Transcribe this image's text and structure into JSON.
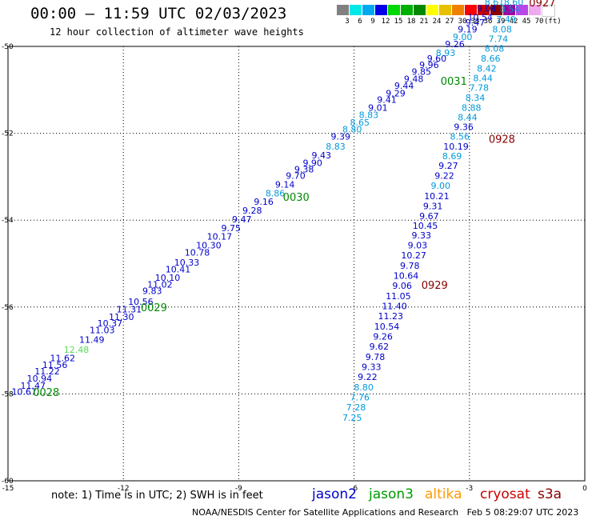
{
  "header": {
    "title": "00:00 – 11:59 UTC 02/03/2023",
    "subtitle": "12 hour collection of altimeter wave heights"
  },
  "legend": {
    "colors": [
      "#808080",
      "#00e8e8",
      "#00a8f0",
      "#0000e8",
      "#00d800",
      "#00b000",
      "#008800",
      "#ffff00",
      "#e8c000",
      "#f08000",
      "#ff0000",
      "#c80000",
      "#880000",
      "#a000a0",
      "#b848e8",
      "#f0a8f0",
      "#ffffff"
    ],
    "labels": [
      "3",
      "6",
      "9",
      "12",
      "15",
      "18",
      "21",
      "24",
      "27",
      "30",
      "33",
      "36",
      "39",
      "42",
      "45",
      "70",
      "(ft)"
    ]
  },
  "footer": {
    "note": "note:  1) Time is in UTC;  2) SWH is in feet",
    "satellites": [
      {
        "name": "jason2",
        "color": "#0000cc"
      },
      {
        "name": "jason3",
        "color": "#009900"
      },
      {
        "name": "altika",
        "color": "#ff9900"
      },
      {
        "name": "cryosat",
        "color": "#cc0000"
      },
      {
        "name": "s3a",
        "color": "#880000"
      }
    ],
    "credit": "NOAA/NESDIS Center for Satellite Applications and Research",
    "timestamp": "Feb  5 08:29:07 UTC 2023"
  },
  "chart_data": {
    "type": "scatter",
    "xlim": [
      -15,
      0
    ],
    "ylim": [
      -60,
      -50
    ],
    "xticks": [
      -15,
      -12,
      -9,
      -6,
      -3,
      0
    ],
    "yticks": [
      -50,
      -52,
      -54,
      -56,
      -58,
      -60
    ],
    "grid": true,
    "colors": {
      "blue": "#0000cc",
      "cyan": "#0099dd",
      "green": "#55dd55",
      "label_green": "#008800",
      "label_red": "#880000"
    },
    "series": [
      {
        "points": [
          {
            "x": -14.58,
            "y": -58.02,
            "v": "10.67",
            "c": "blue"
          },
          {
            "x": -14.35,
            "y": -57.88,
            "v": "11.47",
            "c": "blue"
          },
          {
            "x": -14.18,
            "y": -57.72,
            "v": "10.94",
            "c": "blue"
          },
          {
            "x": -13.98,
            "y": -57.55,
            "v": "11.22",
            "c": "blue"
          },
          {
            "x": -13.78,
            "y": -57.4,
            "v": "11.56",
            "c": "blue"
          },
          {
            "x": -13.58,
            "y": -57.25,
            "v": "11.62",
            "c": "blue"
          },
          {
            "x": -13.22,
            "y": -57.05,
            "v": "12.48",
            "c": "green"
          },
          {
            "x": -12.82,
            "y": -56.82,
            "v": "11.49",
            "c": "blue"
          },
          {
            "x": -12.55,
            "y": -56.6,
            "v": "11.03",
            "c": "blue"
          },
          {
            "x": -12.35,
            "y": -56.45,
            "v": "10.37",
            "c": "blue"
          },
          {
            "x": -12.05,
            "y": -56.3,
            "v": "11.30",
            "c": "blue"
          },
          {
            "x": -11.85,
            "y": -56.12,
            "v": "11.31",
            "c": "blue"
          },
          {
            "x": -11.55,
            "y": -55.95,
            "v": "10.56",
            "c": "blue"
          },
          {
            "x": -11.25,
            "y": -55.7,
            "v": "9.83",
            "c": "blue"
          },
          {
            "x": -11.05,
            "y": -55.55,
            "v": "11.02",
            "c": "blue"
          },
          {
            "x": -10.85,
            "y": -55.4,
            "v": "10.10",
            "c": "blue"
          },
          {
            "x": -10.58,
            "y": -55.2,
            "v": "10.41",
            "c": "blue"
          },
          {
            "x": -10.35,
            "y": -55.05,
            "v": "10.33",
            "c": "blue"
          },
          {
            "x": -10.08,
            "y": -54.82,
            "v": "10.78",
            "c": "blue"
          },
          {
            "x": -9.78,
            "y": -54.65,
            "v": "10.30",
            "c": "blue"
          },
          {
            "x": -9.5,
            "y": -54.45,
            "v": "10.17",
            "c": "blue"
          },
          {
            "x": -9.2,
            "y": -54.25,
            "v": "9.75",
            "c": "blue"
          },
          {
            "x": -8.92,
            "y": -54.05,
            "v": "9.47",
            "c": "blue"
          },
          {
            "x": -8.65,
            "y": -53.85,
            "v": "9.28",
            "c": "blue"
          },
          {
            "x": -8.35,
            "y": -53.65,
            "v": "9.16",
            "c": "blue"
          },
          {
            "x": -8.05,
            "y": -53.45,
            "v": "8.86",
            "c": "cyan"
          },
          {
            "x": -7.8,
            "y": -53.25,
            "v": "9.14",
            "c": "blue"
          },
          {
            "x": -7.52,
            "y": -53.05,
            "v": "9.70",
            "c": "blue"
          },
          {
            "x": -7.3,
            "y": -52.9,
            "v": "9.38",
            "c": "blue"
          },
          {
            "x": -7.08,
            "y": -52.75,
            "v": "9.90",
            "c": "blue"
          },
          {
            "x": -6.85,
            "y": -52.58,
            "v": "9.43",
            "c": "blue"
          },
          {
            "x": -6.48,
            "y": -52.38,
            "v": "8.83",
            "c": "cyan"
          },
          {
            "x": -6.35,
            "y": -52.15,
            "v": "9.39",
            "c": "blue"
          },
          {
            "x": -6.05,
            "y": -51.98,
            "v": "8.80",
            "c": "cyan"
          },
          {
            "x": -5.85,
            "y": -51.82,
            "v": "8.65",
            "c": "cyan"
          },
          {
            "x": -5.62,
            "y": -51.65,
            "v": "8.83",
            "c": "cyan"
          },
          {
            "x": -5.38,
            "y": -51.48,
            "v": "9.01",
            "c": "blue"
          },
          {
            "x": -5.15,
            "y": -51.3,
            "v": "9.41",
            "c": "blue"
          },
          {
            "x": -4.92,
            "y": -51.15,
            "v": "9.29",
            "c": "blue"
          },
          {
            "x": -4.7,
            "y": -50.98,
            "v": "9.44",
            "c": "blue"
          },
          {
            "x": -4.45,
            "y": -50.82,
            "v": "9.48",
            "c": "blue"
          },
          {
            "x": -4.25,
            "y": -50.65,
            "v": "9.85",
            "c": "blue"
          },
          {
            "x": -4.05,
            "y": -50.5,
            "v": "9.96",
            "c": "blue"
          },
          {
            "x": -3.85,
            "y": -50.35,
            "v": "9.60",
            "c": "blue"
          },
          {
            "x": -3.62,
            "y": -50.22,
            "v": "8.93",
            "c": "cyan"
          },
          {
            "x": -3.38,
            "y": -50.02,
            "v": "9.26",
            "c": "blue"
          },
          {
            "x": -3.18,
            "y": -49.85,
            "v": "9.00",
            "c": "cyan"
          },
          {
            "x": -3.05,
            "y": -49.68,
            "v": "9.19",
            "c": "blue"
          },
          {
            "x": -2.85,
            "y": -49.52,
            "v": "9.47",
            "c": "blue"
          },
          {
            "x": -2.72,
            "y": -49.4,
            "v": "10.54",
            "c": "blue"
          },
          {
            "x": -2.55,
            "y": -49.2,
            "v": "9.04",
            "c": "blue"
          },
          {
            "x": -2.35,
            "y": -49.05,
            "v": "8.61",
            "c": "cyan"
          }
        ]
      },
      {
        "points": [
          {
            "x": -1.85,
            "y": -49.05,
            "v": "8.60",
            "c": "cyan"
          },
          {
            "x": -1.95,
            "y": -49.22,
            "v": "8.54",
            "c": "cyan"
          },
          {
            "x": -2.05,
            "y": -49.45,
            "v": "7.49",
            "c": "cyan"
          },
          {
            "x": -2.15,
            "y": -49.68,
            "v": "8.08",
            "c": "cyan"
          },
          {
            "x": -2.25,
            "y": -49.9,
            "v": "7.74",
            "c": "cyan"
          },
          {
            "x": -2.35,
            "y": -50.12,
            "v": "8.08",
            "c": "cyan"
          },
          {
            "x": -2.45,
            "y": -50.35,
            "v": "8.66",
            "c": "cyan"
          },
          {
            "x": -2.55,
            "y": -50.58,
            "v": "8.42",
            "c": "cyan"
          },
          {
            "x": -2.65,
            "y": -50.8,
            "v": "8.44",
            "c": "cyan"
          },
          {
            "x": -2.75,
            "y": -51.02,
            "v": "7.78",
            "c": "cyan"
          },
          {
            "x": -2.85,
            "y": -51.25,
            "v": "8.34",
            "c": "cyan"
          },
          {
            "x": -2.95,
            "y": -51.48,
            "v": "8.88",
            "c": "cyan"
          },
          {
            "x": -3.05,
            "y": -51.7,
            "v": "8.44",
            "c": "cyan"
          },
          {
            "x": -3.15,
            "y": -51.92,
            "v": "9.36",
            "c": "blue"
          },
          {
            "x": -3.25,
            "y": -52.15,
            "v": "8.56",
            "c": "cyan"
          },
          {
            "x": -3.35,
            "y": -52.38,
            "v": "10.19",
            "c": "blue"
          },
          {
            "x": -3.45,
            "y": -52.6,
            "v": "8.69",
            "c": "cyan"
          },
          {
            "x": -3.55,
            "y": -52.82,
            "v": "9.27",
            "c": "blue"
          },
          {
            "x": -3.65,
            "y": -53.05,
            "v": "9.22",
            "c": "blue"
          },
          {
            "x": -3.75,
            "y": -53.28,
            "v": "9.00",
            "c": "cyan"
          },
          {
            "x": -3.85,
            "y": -53.52,
            "v": "10.21",
            "c": "blue"
          },
          {
            "x": -3.95,
            "y": -53.75,
            "v": "9.31",
            "c": "blue"
          },
          {
            "x": -4.05,
            "y": -53.98,
            "v": "9.67",
            "c": "blue"
          },
          {
            "x": -4.15,
            "y": -54.2,
            "v": "10.45",
            "c": "blue"
          },
          {
            "x": -4.25,
            "y": -54.42,
            "v": "9.33",
            "c": "blue"
          },
          {
            "x": -4.35,
            "y": -54.65,
            "v": "9.03",
            "c": "blue"
          },
          {
            "x": -4.45,
            "y": -54.88,
            "v": "10.27",
            "c": "blue"
          },
          {
            "x": -4.55,
            "y": -55.12,
            "v": "9.78",
            "c": "blue"
          },
          {
            "x": -4.65,
            "y": -55.35,
            "v": "10.64",
            "c": "blue"
          },
          {
            "x": -4.75,
            "y": -55.58,
            "v": "9.06",
            "c": "blue"
          },
          {
            "x": -4.85,
            "y": -55.82,
            "v": "11.05",
            "c": "blue"
          },
          {
            "x": -4.95,
            "y": -56.05,
            "v": "11.40",
            "c": "blue"
          },
          {
            "x": -5.05,
            "y": -56.28,
            "v": "11.23",
            "c": "blue"
          },
          {
            "x": -5.15,
            "y": -56.52,
            "v": "10.54",
            "c": "blue"
          },
          {
            "x": -5.25,
            "y": -56.75,
            "v": "9.26",
            "c": "blue"
          },
          {
            "x": -5.35,
            "y": -56.98,
            "v": "9.62",
            "c": "blue"
          },
          {
            "x": -5.45,
            "y": -57.22,
            "v": "9.78",
            "c": "blue"
          },
          {
            "x": -5.55,
            "y": -57.45,
            "v": "9.33",
            "c": "blue"
          },
          {
            "x": -5.65,
            "y": -57.68,
            "v": "9.22",
            "c": "blue"
          },
          {
            "x": -5.75,
            "y": -57.92,
            "v": "8.80",
            "c": "cyan"
          },
          {
            "x": -5.85,
            "y": -58.15,
            "v": "7.76",
            "c": "cyan"
          },
          {
            "x": -5.95,
            "y": -58.38,
            "v": "7.28",
            "c": "cyan"
          },
          {
            "x": -6.05,
            "y": -58.62,
            "v": "7.25",
            "c": "cyan"
          }
        ]
      }
    ],
    "time_labels": [
      {
        "x": -14.35,
        "y": -58.05,
        "text": "0028",
        "c": "label_green"
      },
      {
        "x": -11.55,
        "y": -56.1,
        "text": "0029",
        "c": "label_green"
      },
      {
        "x": -7.85,
        "y": -53.55,
        "text": "0030",
        "c": "label_green"
      },
      {
        "x": -3.75,
        "y": -50.88,
        "text": "0031",
        "c": "label_green"
      },
      {
        "x": -1.45,
        "y": -49.08,
        "text": "0927",
        "c": "label_red"
      },
      {
        "x": -2.5,
        "y": -52.22,
        "text": "0928",
        "c": "label_red"
      },
      {
        "x": -4.25,
        "y": -55.58,
        "text": "0929",
        "c": "label_red"
      }
    ]
  }
}
